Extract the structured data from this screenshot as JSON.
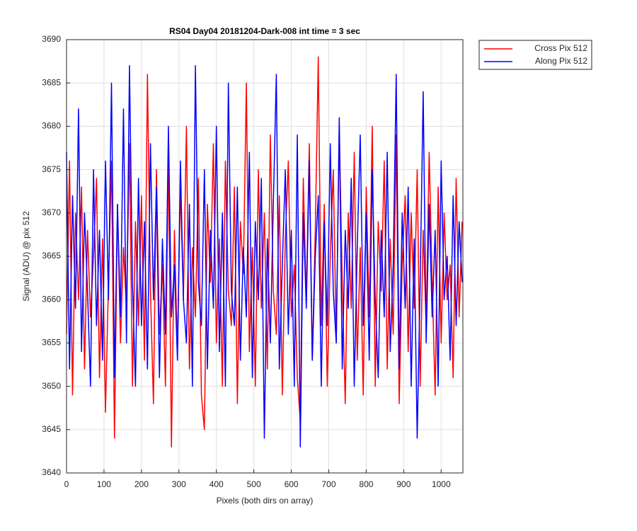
{
  "chart_data": {
    "type": "line",
    "title": "RS04 Day04 20181204-Dark-008 int time = 3 sec",
    "xlabel": "Pixels (both dirs on array)",
    "ylabel": "Signal (ADU) @ pix 512",
    "xlim": [
      0,
      1058
    ],
    "ylim": [
      3640,
      3690
    ],
    "xticks": [
      0,
      100,
      200,
      300,
      400,
      500,
      600,
      700,
      800,
      900,
      1000
    ],
    "yticks": [
      3640,
      3645,
      3650,
      3655,
      3660,
      3665,
      3670,
      3675,
      3680,
      3685,
      3690
    ],
    "grid": true,
    "legend": "outside-top-right",
    "x": [
      0,
      8,
      16,
      24,
      32,
      40,
      48,
      56,
      64,
      72,
      80,
      88,
      96,
      104,
      112,
      120,
      128,
      136,
      144,
      152,
      160,
      168,
      176,
      184,
      192,
      200,
      208,
      216,
      224,
      232,
      240,
      248,
      256,
      264,
      272,
      280,
      288,
      296,
      304,
      312,
      320,
      328,
      336,
      344,
      352,
      360,
      368,
      376,
      384,
      392,
      400,
      408,
      416,
      424,
      432,
      440,
      448,
      456,
      464,
      472,
      480,
      488,
      496,
      504,
      512,
      520,
      528,
      536,
      544,
      552,
      560,
      568,
      576,
      584,
      592,
      600,
      608,
      616,
      624,
      632,
      640,
      648,
      656,
      664,
      672,
      680,
      688,
      696,
      704,
      712,
      720,
      728,
      736,
      744,
      752,
      760,
      768,
      776,
      784,
      792,
      800,
      808,
      816,
      824,
      832,
      840,
      848,
      856,
      864,
      872,
      880,
      888,
      896,
      904,
      912,
      920,
      928,
      936,
      944,
      952,
      960,
      968,
      976,
      984,
      992,
      1000,
      1008,
      1016,
      1024,
      1032,
      1040,
      1048,
      1056
    ],
    "series": [
      {
        "name": "Cross Pix 512",
        "color": "#ff0000",
        "values": [
          3656,
          3676,
          3649,
          3670,
          3660,
          3673,
          3652,
          3668,
          3658,
          3665,
          3674,
          3651,
          3667,
          3647,
          3662,
          3676,
          3644,
          3671,
          3655,
          3666,
          3659,
          3678,
          3650,
          3669,
          3657,
          3672,
          3653,
          3686,
          3661,
          3648,
          3675,
          3656,
          3664,
          3650,
          3677,
          3643,
          3668,
          3654,
          3673,
          3660,
          3680,
          3652,
          3666,
          3658,
          3674,
          3649,
          3645,
          3671,
          3662,
          3678,
          3655,
          3667,
          3650,
          3676,
          3661,
          3657,
          3673,
          3648,
          3669,
          3663,
          3685,
          3654,
          3666,
          3650,
          3675,
          3659,
          3670,
          3652,
          3679,
          3661,
          3656,
          3672,
          3649,
          3667,
          3676,
          3658,
          3664,
          3651,
          3646,
          3674,
          3660,
          3678,
          3653,
          3668,
          3688,
          3657,
          3671,
          3650,
          3665,
          3675,
          3655,
          3680,
          3662,
          3648,
          3670,
          3659,
          3677,
          3653,
          3666,
          3649,
          3673,
          3658,
          3680,
          3650,
          3669,
          3661,
          3676,
          3652,
          3667,
          3656,
          3679,
          3648,
          3664,
          3672,
          3654,
          3670,
          3659,
          3675,
          3650,
          3668,
          3657,
          3677,
          3662,
          3649,
          3673,
          3655,
          3670,
          3660,
          3664,
          3651,
          3674,
          3658,
          3669
        ]
      },
      {
        "name": "Along Pix 512",
        "color": "#0000ff",
        "values": [
          3677,
          3652,
          3672,
          3659,
          3682,
          3654,
          3670,
          3661,
          3650,
          3675,
          3657,
          3668,
          3653,
          3676,
          3660,
          3685,
          3651,
          3671,
          3658,
          3682,
          3655,
          3687,
          3662,
          3650,
          3674,
          3657,
          3669,
          3652,
          3678,
          3660,
          3673,
          3651,
          3667,
          3656,
          3680,
          3658,
          3664,
          3653,
          3676,
          3660,
          3655,
          3671,
          3650,
          3687,
          3662,
          3657,
          3675,
          3652,
          3668,
          3659,
          3680,
          3654,
          3670,
          3650,
          3685,
          3661,
          3657,
          3673,
          3653,
          3666,
          3658,
          3677,
          3651,
          3669,
          3660,
          3674,
          3644,
          3667,
          3655,
          3671,
          3686,
          3652,
          3664,
          3675,
          3656,
          3668,
          3650,
          3679,
          3643,
          3670,
          3659,
          3676,
          3653,
          3665,
          3672,
          3650,
          3669,
          3657,
          3678,
          3661,
          3655,
          3681,
          3652,
          3668,
          3659,
          3674,
          3650,
          3666,
          3679,
          3657,
          3670,
          3653,
          3675,
          3660,
          3651,
          3668,
          3658,
          3677,
          3654,
          3664,
          3686,
          3652,
          3670,
          3659,
          3673,
          3650,
          3667,
          3644,
          3662,
          3684,
          3655,
          3671,
          3658,
          3668,
          3650,
          3676,
          3660,
          3665,
          3653,
          3672,
          3657,
          3669,
          3662
        ]
      }
    ]
  }
}
